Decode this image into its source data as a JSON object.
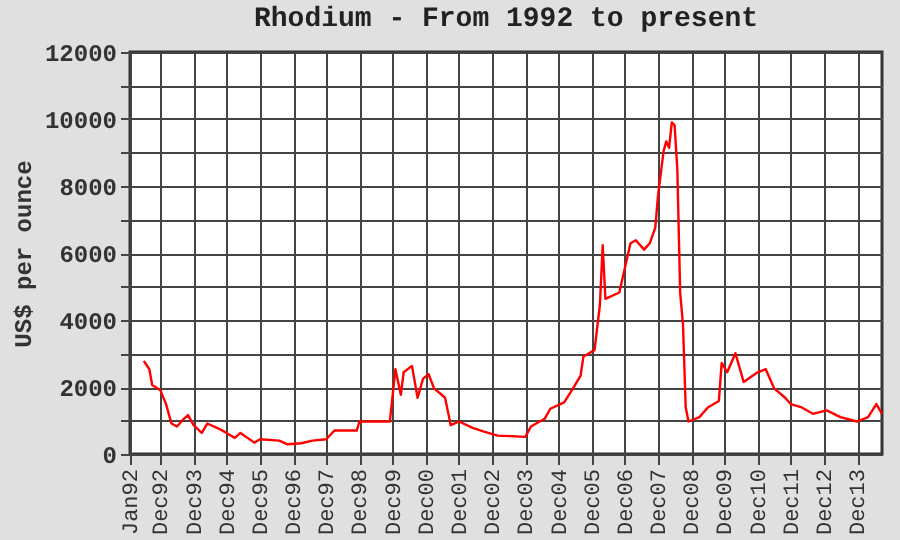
{
  "chart_data": {
    "type": "line",
    "title": "Rhodium - From 1992 to present",
    "ylabel": "US$ per ounce",
    "x": [
      "1992-06",
      "1992-08",
      "1992-09",
      "1992-12",
      "1993-02",
      "1993-04",
      "1993-06",
      "1993-08",
      "1993-10",
      "1993-12",
      "1994-03",
      "1994-05",
      "1994-10",
      "1995-03",
      "1995-05",
      "1995-10",
      "1995-12",
      "1996-07",
      "1996-10",
      "1997-03",
      "1997-07",
      "1997-12",
      "1998-03",
      "1998-11",
      "1998-12",
      "1999-11",
      "2000-01",
      "2000-03",
      "2000-04",
      "2000-07",
      "2000-09",
      "2000-11",
      "2001-01",
      "2001-03",
      "2001-07",
      "2001-09",
      "2001-12",
      "2002-05",
      "2002-09",
      "2003-02",
      "2003-12",
      "2004-02",
      "2004-07",
      "2004-09",
      "2005-02",
      "2005-05",
      "2005-08",
      "2005-09",
      "2006-01",
      "2006-03",
      "2006-04",
      "2006-05",
      "2006-10",
      "2007-02",
      "2007-04",
      "2007-07",
      "2007-09",
      "2007-11",
      "2007-12",
      "2008-02",
      "2008-03",
      "2008-04",
      "2008-05",
      "2008-06",
      "2008-07",
      "2008-08",
      "2008-09",
      "2008-10",
      "2008-11",
      "2009-03",
      "2009-06",
      "2009-10",
      "2009-11",
      "2010-01",
      "2010-04",
      "2010-07",
      "2010-12",
      "2011-03",
      "2011-06",
      "2011-10",
      "2011-12",
      "2012-04",
      "2012-08",
      "2013-01",
      "2013-06",
      "2013-12",
      "2014-04",
      "2014-07",
      "2014-09"
    ],
    "series": [
      {
        "color": "#ff0000",
        "values": [
          2780,
          2530,
          2060,
          1900,
          1490,
          910,
          820,
          1010,
          1160,
          860,
          630,
          910,
          720,
          480,
          630,
          340,
          440,
          400,
          290,
          320,
          400,
          440,
          700,
          700,
          970,
          970,
          2530,
          1770,
          2440,
          2630,
          1680,
          2250,
          2380,
          1960,
          1680,
          860,
          970,
          780,
          670,
          550,
          510,
          820,
          1050,
          1350,
          1540,
          1920,
          2340,
          2910,
          3100,
          4440,
          6230,
          4630,
          4820,
          6290,
          6380,
          6100,
          6290,
          6760,
          7710,
          9050,
          9330,
          9140,
          9900,
          9810,
          8480,
          4820,
          3870,
          1390,
          970,
          1100,
          1390,
          1580,
          2720,
          2440,
          3010,
          2150,
          2440,
          2530,
          1960,
          1680,
          1490,
          1390,
          1200,
          1300,
          1100,
          970,
          1100,
          1490,
          1200
        ]
      }
    ],
    "xlim": [
      "1992-01",
      "2014-09"
    ],
    "xticks": [
      {
        "value": "1992-01",
        "label": "Jan92"
      },
      {
        "value": "1992-12",
        "label": "Dec92"
      },
      {
        "value": "1993-12",
        "label": "Dec93"
      },
      {
        "value": "1994-12",
        "label": "Dec94"
      },
      {
        "value": "1995-12",
        "label": "Dec95"
      },
      {
        "value": "1996-12",
        "label": "Dec96"
      },
      {
        "value": "1997-12",
        "label": "Dec97"
      },
      {
        "value": "1998-12",
        "label": "Dec98"
      },
      {
        "value": "1999-12",
        "label": "Dec99"
      },
      {
        "value": "2000-12",
        "label": "Dec00"
      },
      {
        "value": "2001-12",
        "label": "Dec01"
      },
      {
        "value": "2002-12",
        "label": "Dec02"
      },
      {
        "value": "2003-12",
        "label": "Dec03"
      },
      {
        "value": "2004-12",
        "label": "Dec04"
      },
      {
        "value": "2005-12",
        "label": "Dec05"
      },
      {
        "value": "2006-12",
        "label": "Dec06"
      },
      {
        "value": "2007-12",
        "label": "Dec07"
      },
      {
        "value": "2008-12",
        "label": "Dec08"
      },
      {
        "value": "2009-12",
        "label": "Dec09"
      },
      {
        "value": "2010-12",
        "label": "Dec10"
      },
      {
        "value": "2011-12",
        "label": "Dec11"
      },
      {
        "value": "2012-12",
        "label": "Dec12"
      },
      {
        "value": "2013-12",
        "label": "Dec13"
      }
    ],
    "ylim": [
      0,
      12000
    ],
    "yticks": [
      0,
      {
        "value": 1000,
        "label": null
      },
      2000,
      {
        "value": 3000,
        "label": null
      },
      4000,
      {
        "value": 5000,
        "label": null
      },
      6000,
      {
        "value": 7000,
        "label": null
      },
      8000,
      {
        "value": 9000,
        "label": null
      },
      10000,
      {
        "value": 11000,
        "label": null
      },
      12000
    ],
    "grid": true,
    "line_style": "solid",
    "marker": "none"
  }
}
